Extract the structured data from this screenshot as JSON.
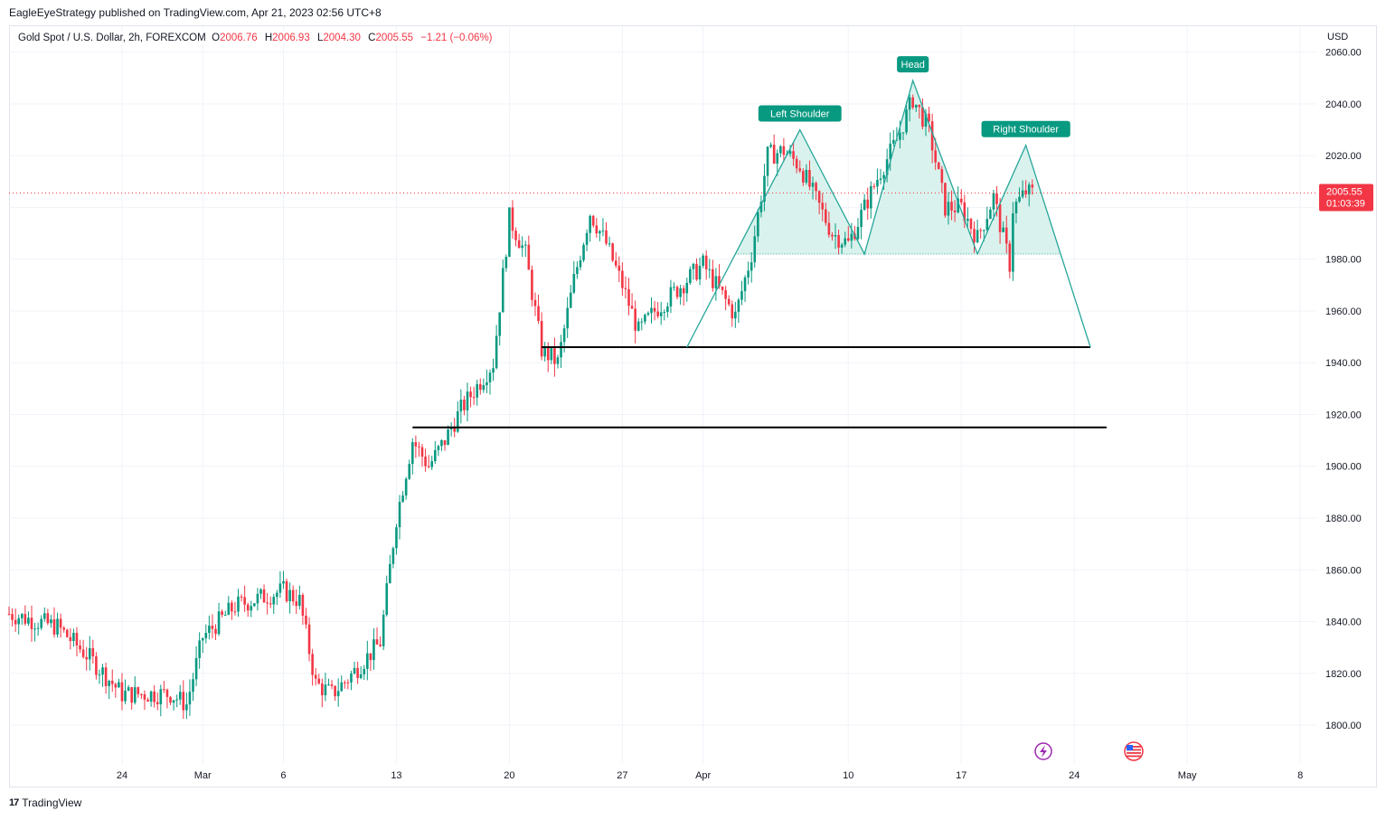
{
  "header": {
    "published_line": "EagleEyeStrategy published on TradingView.com, Apr 21, 2023 02:56 UTC+8"
  },
  "legend": {
    "symbol": "Gold Spot / U.S. Dollar, 2h, FOREXCOM",
    "open_label": "O",
    "open": "2006.76",
    "high_label": "H",
    "high": "2006.93",
    "low_label": "L",
    "low": "2004.30",
    "close_label": "C",
    "close": "2005.55",
    "change": "−1.21 (−0.06%)"
  },
  "price_axis": {
    "currency": "USD",
    "current_price": "2005.55",
    "countdown": "01:03:39"
  },
  "footer": {
    "brand": "TradingView"
  },
  "colors": {
    "up": "#089981",
    "down": "#f23645",
    "pattern": "#26a69a",
    "pattern_fill": "#d1efe9",
    "label_bg": "#089981",
    "grid": "#f0f3fa"
  },
  "icons": [
    "lightning-icon",
    "us-flag-icon"
  ],
  "chart_data": {
    "type": "candlestick",
    "title": "",
    "ylim": [
      1785,
      2070
    ],
    "y_ticks": [
      1800,
      1820,
      1840,
      1860,
      1880,
      1900,
      1920,
      1940,
      1960,
      1980,
      2000,
      2020,
      2040,
      2060
    ],
    "x_tick_labels": [
      "24",
      "Mar",
      "6",
      "13",
      "20",
      "27",
      "Apr",
      "10",
      "17",
      "24",
      "May",
      "8"
    ],
    "date_range": [
      "2023-02-17",
      "2023-05-09"
    ],
    "price_path": [
      [
        "2023-02-17",
        1843
      ],
      [
        "2023-02-20",
        1838
      ],
      [
        "2023-02-22",
        1826
      ],
      [
        "2023-02-24",
        1812
      ],
      [
        "2023-02-27",
        1812
      ],
      [
        "2023-02-28",
        1808
      ],
      [
        "2023-03-01",
        1834
      ],
      [
        "2023-03-03",
        1846
      ],
      [
        "2023-03-06",
        1852
      ],
      [
        "2023-03-07",
        1848
      ],
      [
        "2023-03-08",
        1816
      ],
      [
        "2023-03-09",
        1812
      ],
      [
        "2023-03-10",
        1818
      ],
      [
        "2023-03-12",
        1832
      ],
      [
        "2023-03-13",
        1880
      ],
      [
        "2023-03-14",
        1910
      ],
      [
        "2023-03-15",
        1900
      ],
      [
        "2023-03-16",
        1910
      ],
      [
        "2023-03-17",
        1922
      ],
      [
        "2023-03-19",
        1940
      ],
      [
        "2023-03-20",
        1996
      ],
      [
        "2023-03-21",
        1982
      ],
      [
        "2023-03-22",
        1945
      ],
      [
        "2023-03-23",
        1940
      ],
      [
        "2023-03-24",
        1972
      ],
      [
        "2023-03-25",
        1998
      ],
      [
        "2023-03-26",
        1986
      ],
      [
        "2023-03-27",
        1970
      ],
      [
        "2023-03-28",
        1952
      ],
      [
        "2023-03-29",
        1960
      ],
      [
        "2023-03-30",
        1966
      ],
      [
        "2023-03-31",
        1972
      ],
      [
        "2023-04-01",
        1978
      ],
      [
        "2023-04-03",
        1958
      ],
      [
        "2023-04-04",
        1982
      ],
      [
        "2023-04-05",
        2020
      ],
      [
        "2023-04-06",
        2022
      ],
      [
        "2023-04-07",
        2016
      ],
      [
        "2023-04-09",
        1990
      ],
      [
        "2023-04-10",
        1986
      ],
      [
        "2023-04-11",
        2000
      ],
      [
        "2023-04-12",
        2014
      ],
      [
        "2023-04-13",
        2026
      ],
      [
        "2023-04-14",
        2042
      ],
      [
        "2023-04-15",
        2030
      ],
      [
        "2023-04-16",
        2000
      ],
      [
        "2023-04-17",
        2000
      ],
      [
        "2023-04-18",
        1988
      ],
      [
        "2023-04-19",
        2004
      ],
      [
        "2023-04-20",
        1978
      ],
      [
        "2023-04-20",
        1998
      ],
      [
        "2023-04-21",
        2006
      ],
      [
        "2023-04-21",
        2005.55
      ]
    ],
    "horizontal_lines": [
      {
        "price": 1946,
        "from": "2023-03-22",
        "to": "2023-04-25"
      },
      {
        "price": 1915,
        "from": "2023-03-14",
        "to": "2023-04-26"
      }
    ],
    "head_and_shoulders": {
      "points": [
        [
          "2023-03-31",
          1946
        ],
        [
          "2023-04-07",
          2030
        ],
        [
          "2023-04-11",
          1982
        ],
        [
          "2023-04-14",
          2049
        ],
        [
          "2023-04-18",
          1982
        ],
        [
          "2023-04-21",
          2024
        ],
        [
          "2023-04-25",
          1946
        ]
      ],
      "neckline": 1982,
      "labels": [
        "Left Shoulder",
        "Head",
        "Right Shoulder"
      ]
    }
  }
}
